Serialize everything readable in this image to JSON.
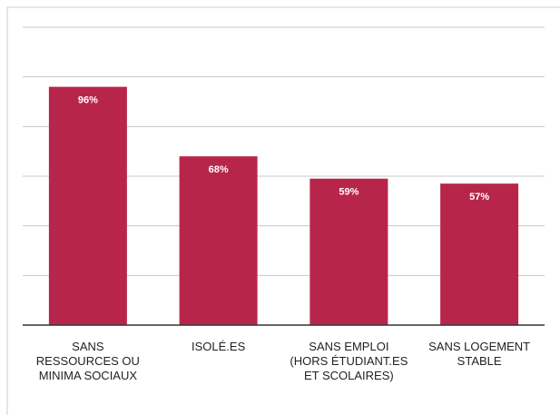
{
  "chart_data": {
    "type": "bar",
    "categories": [
      "SANS RESSOURCES OU MINIMA SOCIAUX",
      "ISOLÉ.ES",
      "SANS EMPLOI (HORS ÉTUDIANT.ES ET SCOLAIRES)",
      "SANS LOGEMENT STABLE"
    ],
    "values": [
      96,
      68,
      59,
      57
    ],
    "value_labels": [
      "96%",
      "68%",
      "59%",
      "57%"
    ],
    "color": "#b8254b",
    "ylim": [
      0,
      120
    ],
    "yticks": [
      0,
      20,
      40,
      60,
      80,
      100,
      120
    ],
    "grid": true
  }
}
